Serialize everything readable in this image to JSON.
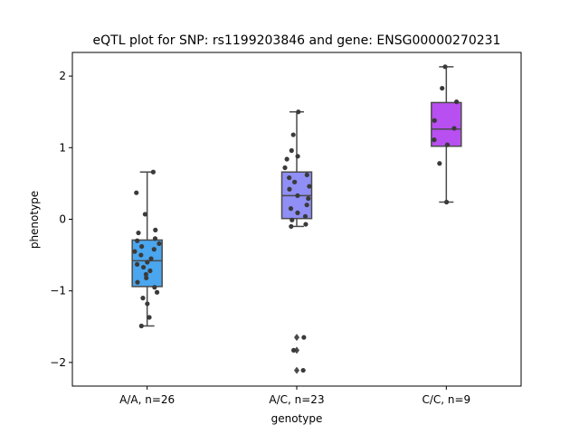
{
  "chart_data": {
    "type": "box",
    "title": "eQTL plot for SNP: rs1199203846 and gene: ENSG00000270231",
    "xlabel": "genotype",
    "ylabel": "phenotype",
    "ylim": [
      -2.33,
      2.33
    ],
    "yticks": [
      -2,
      -1,
      0,
      1,
      2
    ],
    "ytick_labels": [
      "−2",
      "−1",
      "0",
      "1",
      "2"
    ],
    "grid": false,
    "legend": "none",
    "categories": [
      {
        "label": "A/A, n=26",
        "color": "#4aa6ee",
        "box": {
          "q1": -0.94,
          "median": -0.58,
          "q3": -0.29,
          "whisker_low": -1.49,
          "whisker_high": 0.66
        },
        "points": [
          0.66,
          0.37,
          0.07,
          -0.15,
          -0.19,
          -0.27,
          -0.3,
          -0.34,
          -0.38,
          -0.42,
          -0.45,
          -0.5,
          -0.55,
          -0.6,
          -0.63,
          -0.67,
          -0.72,
          -0.77,
          -0.82,
          -0.88,
          -0.95,
          -1.02,
          -1.1,
          -1.18,
          -1.37,
          -1.49
        ],
        "outliers": []
      },
      {
        "label": "A/C, n=23",
        "color": "#8f8ff5",
        "box": {
          "q1": 0.01,
          "median": 0.33,
          "q3": 0.66,
          "whisker_low": -0.1,
          "whisker_high": 1.5
        },
        "points": [
          1.5,
          1.18,
          0.96,
          0.88,
          0.84,
          0.72,
          0.62,
          0.58,
          0.52,
          0.46,
          0.42,
          0.33,
          0.29,
          0.2,
          0.15,
          0.09,
          0.04,
          -0.01,
          -0.07,
          -0.1,
          -1.65,
          -1.83,
          -2.11
        ],
        "outliers": [
          -1.65,
          -1.83,
          -2.11
        ]
      },
      {
        "label": "C/C, n=9",
        "color": "#b84ff0",
        "box": {
          "q1": 1.02,
          "median": 1.26,
          "q3": 1.63,
          "whisker_low": 0.24,
          "whisker_high": 2.13
        },
        "points": [
          2.13,
          1.83,
          1.64,
          1.38,
          1.27,
          1.11,
          1.04,
          0.78,
          0.24
        ],
        "outliers": []
      }
    ]
  }
}
